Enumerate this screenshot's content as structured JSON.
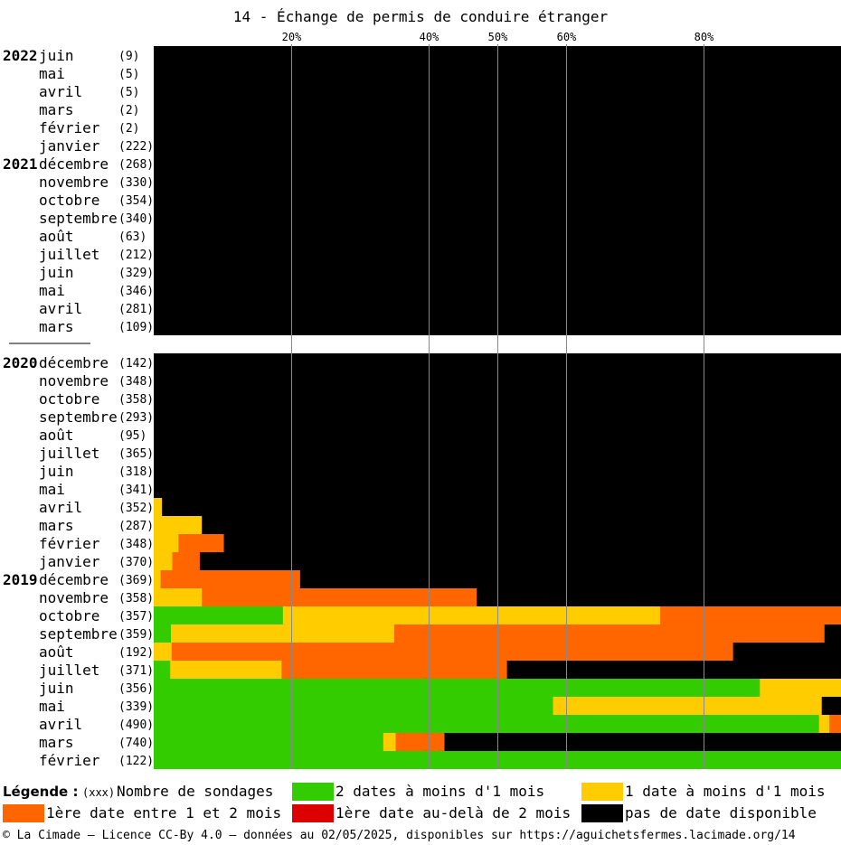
{
  "chart_data": {
    "type": "bar",
    "orientation": "horizontal",
    "stacked": true,
    "title": "14 - Échange de permis de conduire étranger",
    "x_ticks": [
      "20%",
      "40%",
      "50%",
      "60%",
      "80%"
    ],
    "x_tick_values": [
      20,
      40,
      50,
      60,
      80
    ],
    "xlim": [
      0,
      100
    ],
    "grid": true,
    "legend_position": "bottom",
    "colors": {
      "green": "#33cc00",
      "yellow": "#ffcc00",
      "orange": "#ff6600",
      "red": "#dd0000",
      "black": "#000000"
    },
    "series_order": [
      "green",
      "yellow",
      "orange",
      "red",
      "black"
    ],
    "groups": [
      {
        "rows": [
          {
            "year": "2022",
            "month": "juin",
            "count": "(9)",
            "values": [
              0,
              0,
              0,
              0,
              100
            ]
          },
          {
            "year": "",
            "month": "mai",
            "count": "(5)",
            "values": [
              0,
              0,
              0,
              0,
              100
            ]
          },
          {
            "year": "",
            "month": "avril",
            "count": "(5)",
            "values": [
              0,
              0,
              0,
              0,
              100
            ]
          },
          {
            "year": "",
            "month": "mars",
            "count": "(2)",
            "values": [
              0,
              0,
              0,
              0,
              100
            ]
          },
          {
            "year": "",
            "month": "février",
            "count": "(2)",
            "values": [
              0,
              0,
              0,
              0,
              100
            ]
          },
          {
            "year": "",
            "month": "janvier",
            "count": "(222)",
            "values": [
              0,
              0,
              0,
              0,
              100
            ]
          },
          {
            "year": "2021",
            "month": "décembre",
            "count": "(268)",
            "values": [
              0,
              0,
              0,
              0,
              100
            ]
          },
          {
            "year": "",
            "month": "novembre",
            "count": "(330)",
            "values": [
              0,
              0,
              0,
              0,
              100
            ]
          },
          {
            "year": "",
            "month": "octobre",
            "count": "(354)",
            "values": [
              0,
              0,
              0,
              0,
              100
            ]
          },
          {
            "year": "",
            "month": "septembre",
            "count": "(340)",
            "values": [
              0,
              0,
              0,
              0,
              100
            ]
          },
          {
            "year": "",
            "month": "août",
            "count": "(63)",
            "values": [
              0,
              0,
              0,
              0,
              100
            ]
          },
          {
            "year": "",
            "month": "juillet",
            "count": "(212)",
            "values": [
              0,
              0,
              0,
              0,
              100
            ]
          },
          {
            "year": "",
            "month": "juin",
            "count": "(329)",
            "values": [
              0,
              0,
              0,
              0,
              100
            ]
          },
          {
            "year": "",
            "month": "mai",
            "count": "(346)",
            "values": [
              0,
              0,
              0,
              0,
              100
            ]
          },
          {
            "year": "",
            "month": "avril",
            "count": "(281)",
            "values": [
              0,
              0,
              0,
              0,
              100
            ]
          },
          {
            "year": "",
            "month": "mars",
            "count": "(109)",
            "values": [
              0,
              0,
              0,
              0,
              100
            ]
          }
        ]
      },
      {
        "rows": [
          {
            "year": "2020",
            "month": "décembre",
            "count": "(142)",
            "values": [
              0,
              0,
              0,
              0,
              100
            ]
          },
          {
            "year": "",
            "month": "novembre",
            "count": "(348)",
            "values": [
              0,
              0,
              0,
              0,
              100
            ]
          },
          {
            "year": "",
            "month": "octobre",
            "count": "(358)",
            "values": [
              0,
              0,
              0,
              0,
              100
            ]
          },
          {
            "year": "",
            "month": "septembre",
            "count": "(293)",
            "values": [
              0,
              0,
              0,
              0,
              100
            ]
          },
          {
            "year": "",
            "month": "août",
            "count": "(95)",
            "values": [
              0,
              0,
              0,
              0,
              100
            ]
          },
          {
            "year": "",
            "month": "juillet",
            "count": "(365)",
            "values": [
              0,
              0,
              0,
              0,
              100
            ]
          },
          {
            "year": "",
            "month": "juin",
            "count": "(318)",
            "values": [
              0,
              0,
              0,
              0,
              100
            ]
          },
          {
            "year": "",
            "month": "mai",
            "count": "(341)",
            "values": [
              0,
              0,
              0,
              0,
              100
            ]
          },
          {
            "year": "",
            "month": "avril",
            "count": "(352)",
            "values": [
              0,
              1.2,
              0,
              0,
              98.8
            ]
          },
          {
            "year": "",
            "month": "mars",
            "count": "(287)",
            "values": [
              0,
              7,
              0,
              0,
              93
            ]
          },
          {
            "year": "",
            "month": "février",
            "count": "(348)",
            "values": [
              0,
              3.6,
              6.6,
              0,
              89.8
            ]
          },
          {
            "year": "",
            "month": "janvier",
            "count": "(370)",
            "values": [
              0,
              2.7,
              4,
              0,
              93.3
            ]
          },
          {
            "year": "2019",
            "month": "décembre",
            "count": "(369)",
            "values": [
              0,
              1,
              20.3,
              0,
              78.7
            ]
          },
          {
            "year": "",
            "month": "novembre",
            "count": "(358)",
            "values": [
              0,
              7,
              40,
              0,
              53
            ]
          },
          {
            "year": "",
            "month": "octobre",
            "count": "(357)",
            "values": [
              18.8,
              54.9,
              26.3,
              0,
              0
            ]
          },
          {
            "year": "",
            "month": "septembre",
            "count": "(359)",
            "values": [
              2.5,
              32.5,
              62.6,
              0,
              2.4
            ]
          },
          {
            "year": "",
            "month": "août",
            "count": "(192)",
            "values": [
              0,
              2.6,
              81.7,
              0,
              15.7
            ]
          },
          {
            "year": "",
            "month": "juillet",
            "count": "(371)",
            "values": [
              2.4,
              16.2,
              32.8,
              0,
              48.6
            ]
          },
          {
            "year": "",
            "month": "juin",
            "count": "(356)",
            "values": [
              88.2,
              11.8,
              0,
              0,
              0
            ]
          },
          {
            "year": "",
            "month": "mai",
            "count": "(339)",
            "values": [
              58.1,
              39.1,
              0,
              0,
              2.8
            ]
          },
          {
            "year": "",
            "month": "avril",
            "count": "(490)",
            "values": [
              96.8,
              1.5,
              1.7,
              0,
              0
            ]
          },
          {
            "year": "",
            "month": "mars",
            "count": "(740)",
            "values": [
              33.4,
              1.8,
              7.1,
              0,
              57.7
            ]
          },
          {
            "year": "",
            "month": "février",
            "count": "(122)",
            "values": [
              100,
              0,
              0,
              0,
              0
            ]
          }
        ]
      }
    ]
  },
  "legend": {
    "title": "Légende :",
    "count_label": "(xxx)",
    "count_text": "Nombre de sondages",
    "items": [
      {
        "key": "green",
        "label": "2 dates à moins d'1 mois"
      },
      {
        "key": "yellow",
        "label": "1 date à moins d'1 mois"
      },
      {
        "key": "orange",
        "label": "1ère date entre 1 et 2 mois"
      },
      {
        "key": "red",
        "label": "1ère date au-delà de 2 mois"
      },
      {
        "key": "black",
        "label": "pas de date disponible"
      }
    ]
  },
  "footer": "© La Cimade — Licence CC-By 4.0 — données au 02/05/2025, disponibles sur https://aguichetsfermes.lacimade.org/14"
}
